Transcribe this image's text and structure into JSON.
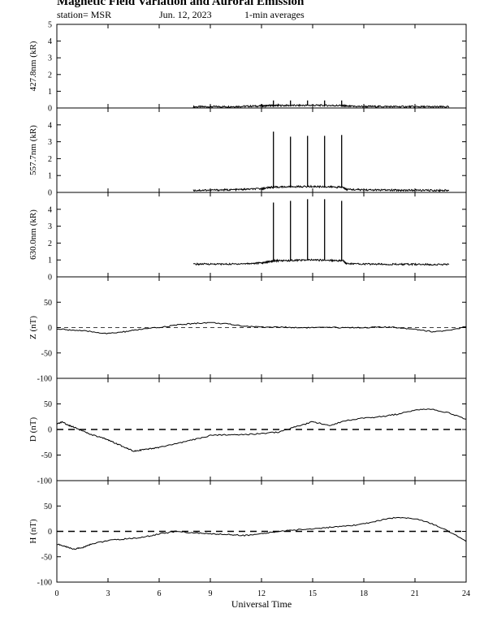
{
  "header": {
    "title": "Magnetic Field Variation and Auroral Emission",
    "station": "station= MSR",
    "date": "Jun. 12, 2023",
    "averaging": "1-min averages"
  },
  "chart_data": {
    "type": "line",
    "x_axis": {
      "label": "Universal Time",
      "range": [
        0,
        24
      ],
      "ticks": [
        0,
        3,
        6,
        9,
        12,
        15,
        18,
        21,
        24
      ]
    },
    "panels": [
      {
        "id": "p427",
        "ylabel": "427.8nm (kR)",
        "ylim": [
          0,
          5
        ],
        "yticks": [
          0,
          1,
          2,
          3,
          4,
          5
        ],
        "zero_line": false,
        "series": {
          "x": [
            8.0,
            9.0,
            10.0,
            11.0,
            12.0,
            12.5,
            13.0,
            14.0,
            15.0,
            16.0,
            16.8,
            17.0,
            18.0,
            19.0,
            20.0,
            21.0,
            22.0,
            23.0
          ],
          "y": [
            0.07,
            0.08,
            0.08,
            0.1,
            0.12,
            0.14,
            0.15,
            0.15,
            0.16,
            0.15,
            0.14,
            0.1,
            0.09,
            0.09,
            0.08,
            0.08,
            0.07,
            0.07
          ]
        },
        "spikes": [
          {
            "x": 12.7,
            "y": 0.45
          },
          {
            "x": 13.7,
            "y": 0.45
          },
          {
            "x": 14.7,
            "y": 0.45
          },
          {
            "x": 15.7,
            "y": 0.45
          },
          {
            "x": 16.7,
            "y": 0.45
          }
        ]
      },
      {
        "id": "p557",
        "ylabel": "557.7nm (kR)",
        "ylim": [
          0,
          5
        ],
        "yticks": [
          0,
          1,
          2,
          3,
          4
        ],
        "zero_line": false,
        "series": {
          "x": [
            8.0,
            9.0,
            10.0,
            11.0,
            12.0,
            12.5,
            13.0,
            14.0,
            15.0,
            16.0,
            16.8,
            17.0,
            18.0,
            19.0,
            20.0,
            21.0,
            22.0,
            23.0
          ],
          "y": [
            0.12,
            0.14,
            0.15,
            0.18,
            0.22,
            0.3,
            0.32,
            0.34,
            0.35,
            0.33,
            0.3,
            0.18,
            0.15,
            0.14,
            0.13,
            0.13,
            0.12,
            0.12
          ]
        },
        "spikes": [
          {
            "x": 12.7,
            "y": 3.6
          },
          {
            "x": 13.7,
            "y": 3.3
          },
          {
            "x": 14.7,
            "y": 3.35
          },
          {
            "x": 15.7,
            "y": 3.35
          },
          {
            "x": 16.7,
            "y": 3.4
          }
        ]
      },
      {
        "id": "p630",
        "ylabel": "630.0nm (kR)",
        "ylim": [
          0,
          5
        ],
        "yticks": [
          0,
          1,
          2,
          3,
          4
        ],
        "zero_line": false,
        "series": {
          "x": [
            8.0,
            9.0,
            10.0,
            11.0,
            12.0,
            12.5,
            13.0,
            14.0,
            15.0,
            16.0,
            16.8,
            17.0,
            18.0,
            19.0,
            20.0,
            21.0,
            22.0,
            23.0
          ],
          "y": [
            0.75,
            0.76,
            0.75,
            0.78,
            0.82,
            0.92,
            0.95,
            0.98,
            1.0,
            0.98,
            0.95,
            0.78,
            0.76,
            0.75,
            0.74,
            0.74,
            0.73,
            0.73
          ]
        },
        "spikes": [
          {
            "x": 12.7,
            "y": 4.4
          },
          {
            "x": 13.7,
            "y": 4.5
          },
          {
            "x": 14.7,
            "y": 4.6
          },
          {
            "x": 15.7,
            "y": 4.6
          },
          {
            "x": 16.7,
            "y": 4.5
          }
        ]
      },
      {
        "id": "pZ",
        "ylabel": "Z (nT)",
        "ylim": [
          -100,
          100
        ],
        "yticks": [
          -100,
          -50,
          0,
          50
        ],
        "zero_line": true,
        "series": {
          "x": [
            0,
            1,
            2,
            3,
            4,
            5,
            6,
            7,
            8,
            9,
            10,
            11,
            12,
            13,
            14,
            15,
            16,
            17,
            18,
            19,
            20,
            21,
            22,
            23,
            24
          ],
          "y": [
            -3,
            -5,
            -8,
            -12,
            -8,
            -3,
            0,
            5,
            8,
            10,
            7,
            3,
            1,
            1,
            0,
            0,
            0,
            0,
            0,
            1,
            0,
            -3,
            -8,
            -6,
            2
          ]
        }
      },
      {
        "id": "pD",
        "ylabel": "D (nT)",
        "ylim": [
          -100,
          100
        ],
        "yticks": [
          -100,
          -50,
          0,
          50
        ],
        "zero_line": true,
        "series": {
          "x": [
            0,
            0.3,
            0.7,
            1,
            1.5,
            2,
            2.5,
            3,
            3.5,
            4,
            4.5,
            5,
            5.5,
            6,
            7,
            8,
            9,
            10,
            11,
            12,
            13,
            14,
            15,
            16,
            17,
            18,
            19,
            20,
            21,
            22,
            23,
            24
          ],
          "y": [
            10,
            15,
            8,
            5,
            -3,
            -10,
            -15,
            -20,
            -28,
            -35,
            -42,
            -40,
            -38,
            -35,
            -28,
            -20,
            -12,
            -10,
            -10,
            -8,
            -5,
            5,
            15,
            8,
            18,
            22,
            25,
            30,
            38,
            40,
            32,
            20
          ]
        }
      },
      {
        "id": "pH",
        "ylabel": "H (nT)",
        "ylim": [
          -100,
          100
        ],
        "yticks": [
          -100,
          -50,
          0,
          50
        ],
        "zero_line": true,
        "series": {
          "x": [
            0,
            0.5,
            1,
            1.5,
            2,
            3,
            4,
            5,
            6,
            7,
            8,
            9,
            10,
            11,
            12,
            13,
            14,
            15,
            16,
            17,
            18,
            19,
            20,
            21,
            22,
            23,
            24
          ],
          "y": [
            -25,
            -30,
            -35,
            -32,
            -25,
            -18,
            -15,
            -12,
            -5,
            0,
            -3,
            -5,
            -6,
            -8,
            -5,
            0,
            3,
            5,
            8,
            10,
            15,
            22,
            28,
            25,
            15,
            0,
            -20
          ]
        }
      }
    ]
  }
}
